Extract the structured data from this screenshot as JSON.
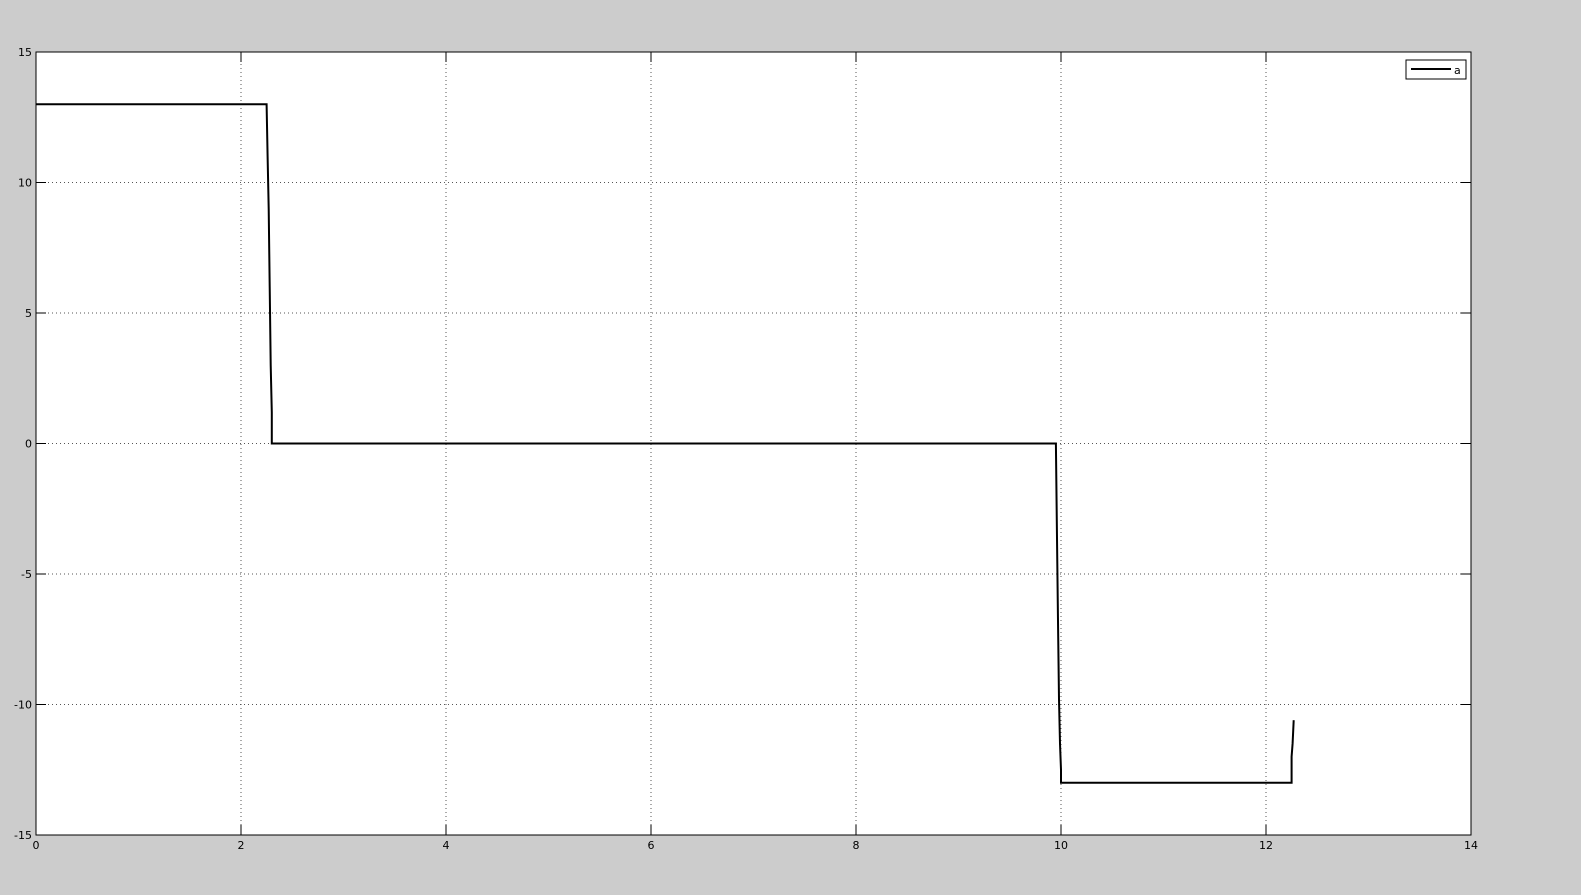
{
  "chart_data": {
    "type": "line",
    "title": "",
    "xlabel": "",
    "ylabel": "",
    "xlim": [
      0,
      14
    ],
    "ylim": [
      -15,
      15
    ],
    "xticks": [
      0,
      2,
      4,
      6,
      8,
      10,
      12,
      14
    ],
    "yticks": [
      -15,
      -10,
      -5,
      0,
      5,
      10,
      15
    ],
    "grid": true,
    "legend_position": "top-right",
    "series": [
      {
        "name": "a",
        "color": "#000000",
        "x": [
          0,
          2.25,
          2.26,
          2.27,
          2.28,
          2.29,
          2.3,
          2.3,
          9.95,
          9.96,
          9.97,
          9.98,
          9.99,
          10.0,
          10.0,
          12.25,
          12.25,
          12.26,
          12.27
        ],
        "y": [
          13,
          13,
          11,
          9,
          6,
          3,
          1.2,
          0,
          0,
          -3.3,
          -6.5,
          -9.8,
          -11.5,
          -12.5,
          -13,
          -13,
          -12,
          -11.5,
          -10.6
        ]
      }
    ]
  }
}
